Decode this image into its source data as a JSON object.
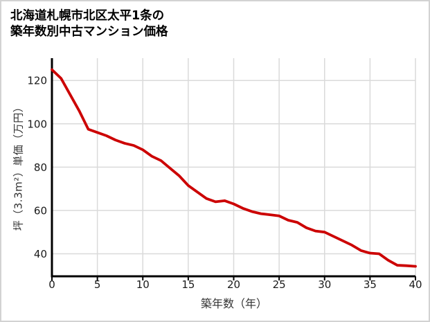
{
  "title": {
    "line1": "北海道札幌市北区太平1条の",
    "line2": "築年数別中古マンション価格"
  },
  "chart_data": {
    "type": "line",
    "title": "北海道札幌市北区太平1条の築年数別中古マンション価格",
    "xlabel": "築年数（年）",
    "ylabel": "坪（3.3m²）単価（万円）",
    "x": [
      0,
      1,
      2,
      3,
      4,
      5,
      6,
      7,
      8,
      9,
      10,
      11,
      12,
      13,
      14,
      15,
      16,
      17,
      18,
      19,
      20,
      21,
      22,
      23,
      24,
      25,
      26,
      27,
      28,
      29,
      30,
      31,
      32,
      33,
      34,
      35,
      36,
      37,
      38,
      39,
      40
    ],
    "values": [
      125,
      121,
      113.5,
      106,
      97.5,
      96,
      94.5,
      92.5,
      91,
      90,
      88,
      85,
      83,
      79.5,
      76,
      71.5,
      68.5,
      65.5,
      64,
      64.5,
      63,
      61,
      59.5,
      58.5,
      58,
      57.5,
      55.5,
      54.5,
      52,
      50.5,
      50,
      48,
      46,
      44,
      41.5,
      40.3,
      40,
      37,
      34.7,
      34.5,
      34.2
    ],
    "xticks": [
      0,
      5,
      10,
      15,
      20,
      25,
      30,
      35,
      40
    ],
    "yticks": [
      40,
      60,
      80,
      100,
      120
    ],
    "xlim": [
      0,
      40
    ],
    "ylim": [
      29.6,
      130.3
    ],
    "grid": true,
    "legend": false,
    "line_color": "#cc0000",
    "grid_color": "#dadada",
    "axis_color": "#000000",
    "tick_label_color": "#1a1a1a",
    "axis_title_color": "#333333"
  }
}
